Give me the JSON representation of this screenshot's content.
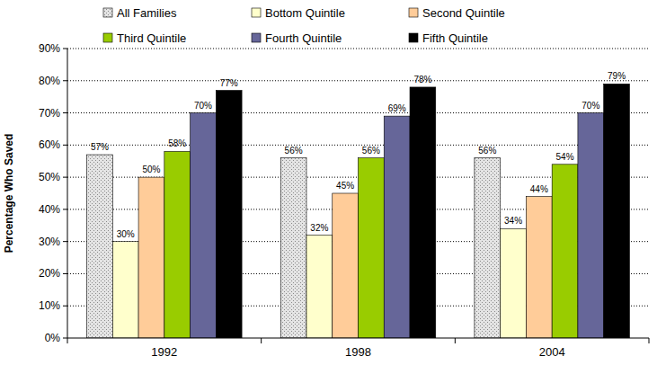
{
  "chart_data": {
    "type": "bar",
    "y_label": "Percentage Who Saved",
    "categories": [
      "1992",
      "1998",
      "2004"
    ],
    "series": [
      {
        "name": "All Families",
        "color": "#e4e4e4",
        "values": [
          57,
          56,
          56
        ],
        "value_labels": [
          "57%",
          "56%",
          "56%"
        ]
      },
      {
        "name": "Bottom Quintile",
        "color": "#ffffcc",
        "values": [
          30,
          32,
          34
        ],
        "value_labels": [
          "30%",
          "32%",
          "34%"
        ]
      },
      {
        "name": "Second Quintile",
        "color": "#ffcc99",
        "values": [
          50,
          45,
          44
        ],
        "value_labels": [
          "50%",
          "45%",
          "44%"
        ]
      },
      {
        "name": "Third Quintile",
        "color": "#99cc00",
        "values": [
          58,
          56,
          54
        ],
        "value_labels": [
          "58%",
          "56%",
          "54%"
        ]
      },
      {
        "name": "Fourth Quintile",
        "color": "#666699",
        "values": [
          70,
          69,
          70
        ],
        "value_labels": [
          "70%",
          "69%",
          "70%"
        ]
      },
      {
        "name": "Fifth Quintile",
        "color": "#000000",
        "values": [
          77,
          78,
          79
        ],
        "value_labels": [
          "77%",
          "78%",
          "79%"
        ]
      }
    ],
    "ylim": [
      0,
      90
    ],
    "yticks": [
      {
        "value": 0,
        "label": "0%"
      },
      {
        "value": 10,
        "label": "10%"
      },
      {
        "value": 20,
        "label": "20%"
      },
      {
        "value": 30,
        "label": "30%"
      },
      {
        "value": 40,
        "label": "40%"
      },
      {
        "value": 50,
        "label": "50%"
      },
      {
        "value": 60,
        "label": "60%"
      },
      {
        "value": 70,
        "label": "70%"
      },
      {
        "value": 80,
        "label": "80%"
      },
      {
        "value": 90,
        "label": "90%"
      }
    ],
    "grid": true,
    "legend": "top",
    "data_labels": true
  }
}
